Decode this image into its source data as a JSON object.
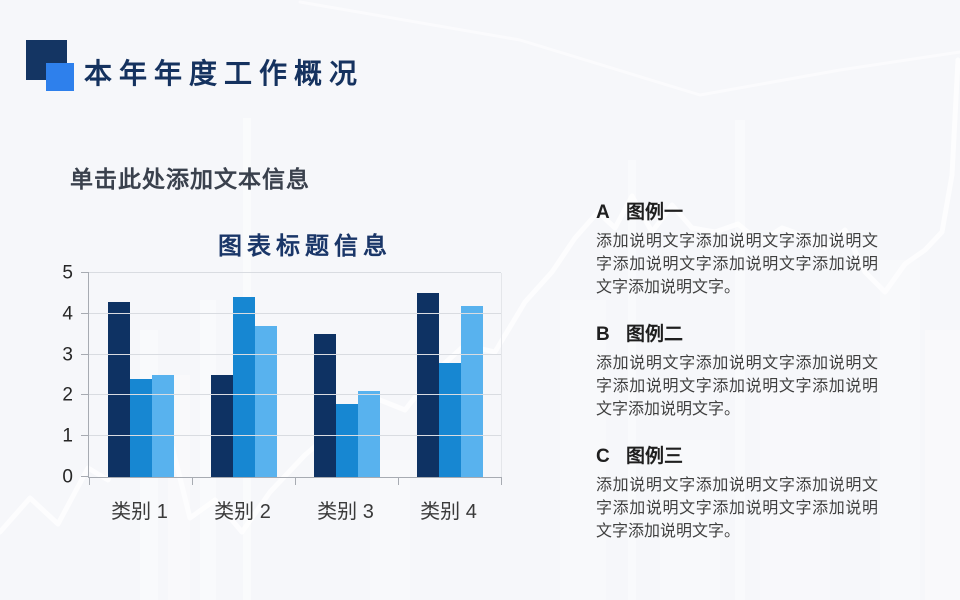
{
  "header": {
    "title": "本年年度工作概况"
  },
  "placeholder": {
    "text": "单击此处添加文本信息"
  },
  "colors": {
    "background": "#F6F7FA",
    "icon_navy": "#143563",
    "icon_blue": "#2E80EC",
    "title_text": "#15325F",
    "chart_title_text": "#1A3668",
    "bar_dark": "#0E3263",
    "bar_blue": "#1787D2",
    "bar_light": "#58B2EE"
  },
  "chart_data": {
    "type": "bar",
    "title": "图表标题信息",
    "categories": [
      "类别 1",
      "类别 2",
      "类别 3",
      "类别 4"
    ],
    "series": [
      {
        "color": "#0E3263",
        "values": [
          4.3,
          2.5,
          3.5,
          4.5
        ]
      },
      {
        "color": "#1787D2",
        "values": [
          2.4,
          4.4,
          1.8,
          2.8
        ]
      },
      {
        "color": "#58B2EE",
        "values": [
          2.5,
          3.7,
          2.1,
          4.2
        ]
      }
    ],
    "ylim": [
      0,
      5
    ],
    "yticks": [
      0,
      1,
      2,
      3,
      4,
      5
    ],
    "grid": "horizontal",
    "legend_position": "none"
  },
  "legend_sections": [
    {
      "letter": "A",
      "title": "图例一",
      "body": "添加说明文字添加说明文字添加说明文字添加说明文字添加说明文字添加说明文字添加说明文字。"
    },
    {
      "letter": "B",
      "title": "图例二",
      "body": "添加说明文字添加说明文字添加说明文字添加说明文字添加说明文字添加说明文字添加说明文字。"
    },
    {
      "letter": "C",
      "title": "图例三",
      "body": "添加说明文字添加说明文字添加说明文字添加说明文字添加说明文字添加说明文字添加说明文字。"
    }
  ]
}
